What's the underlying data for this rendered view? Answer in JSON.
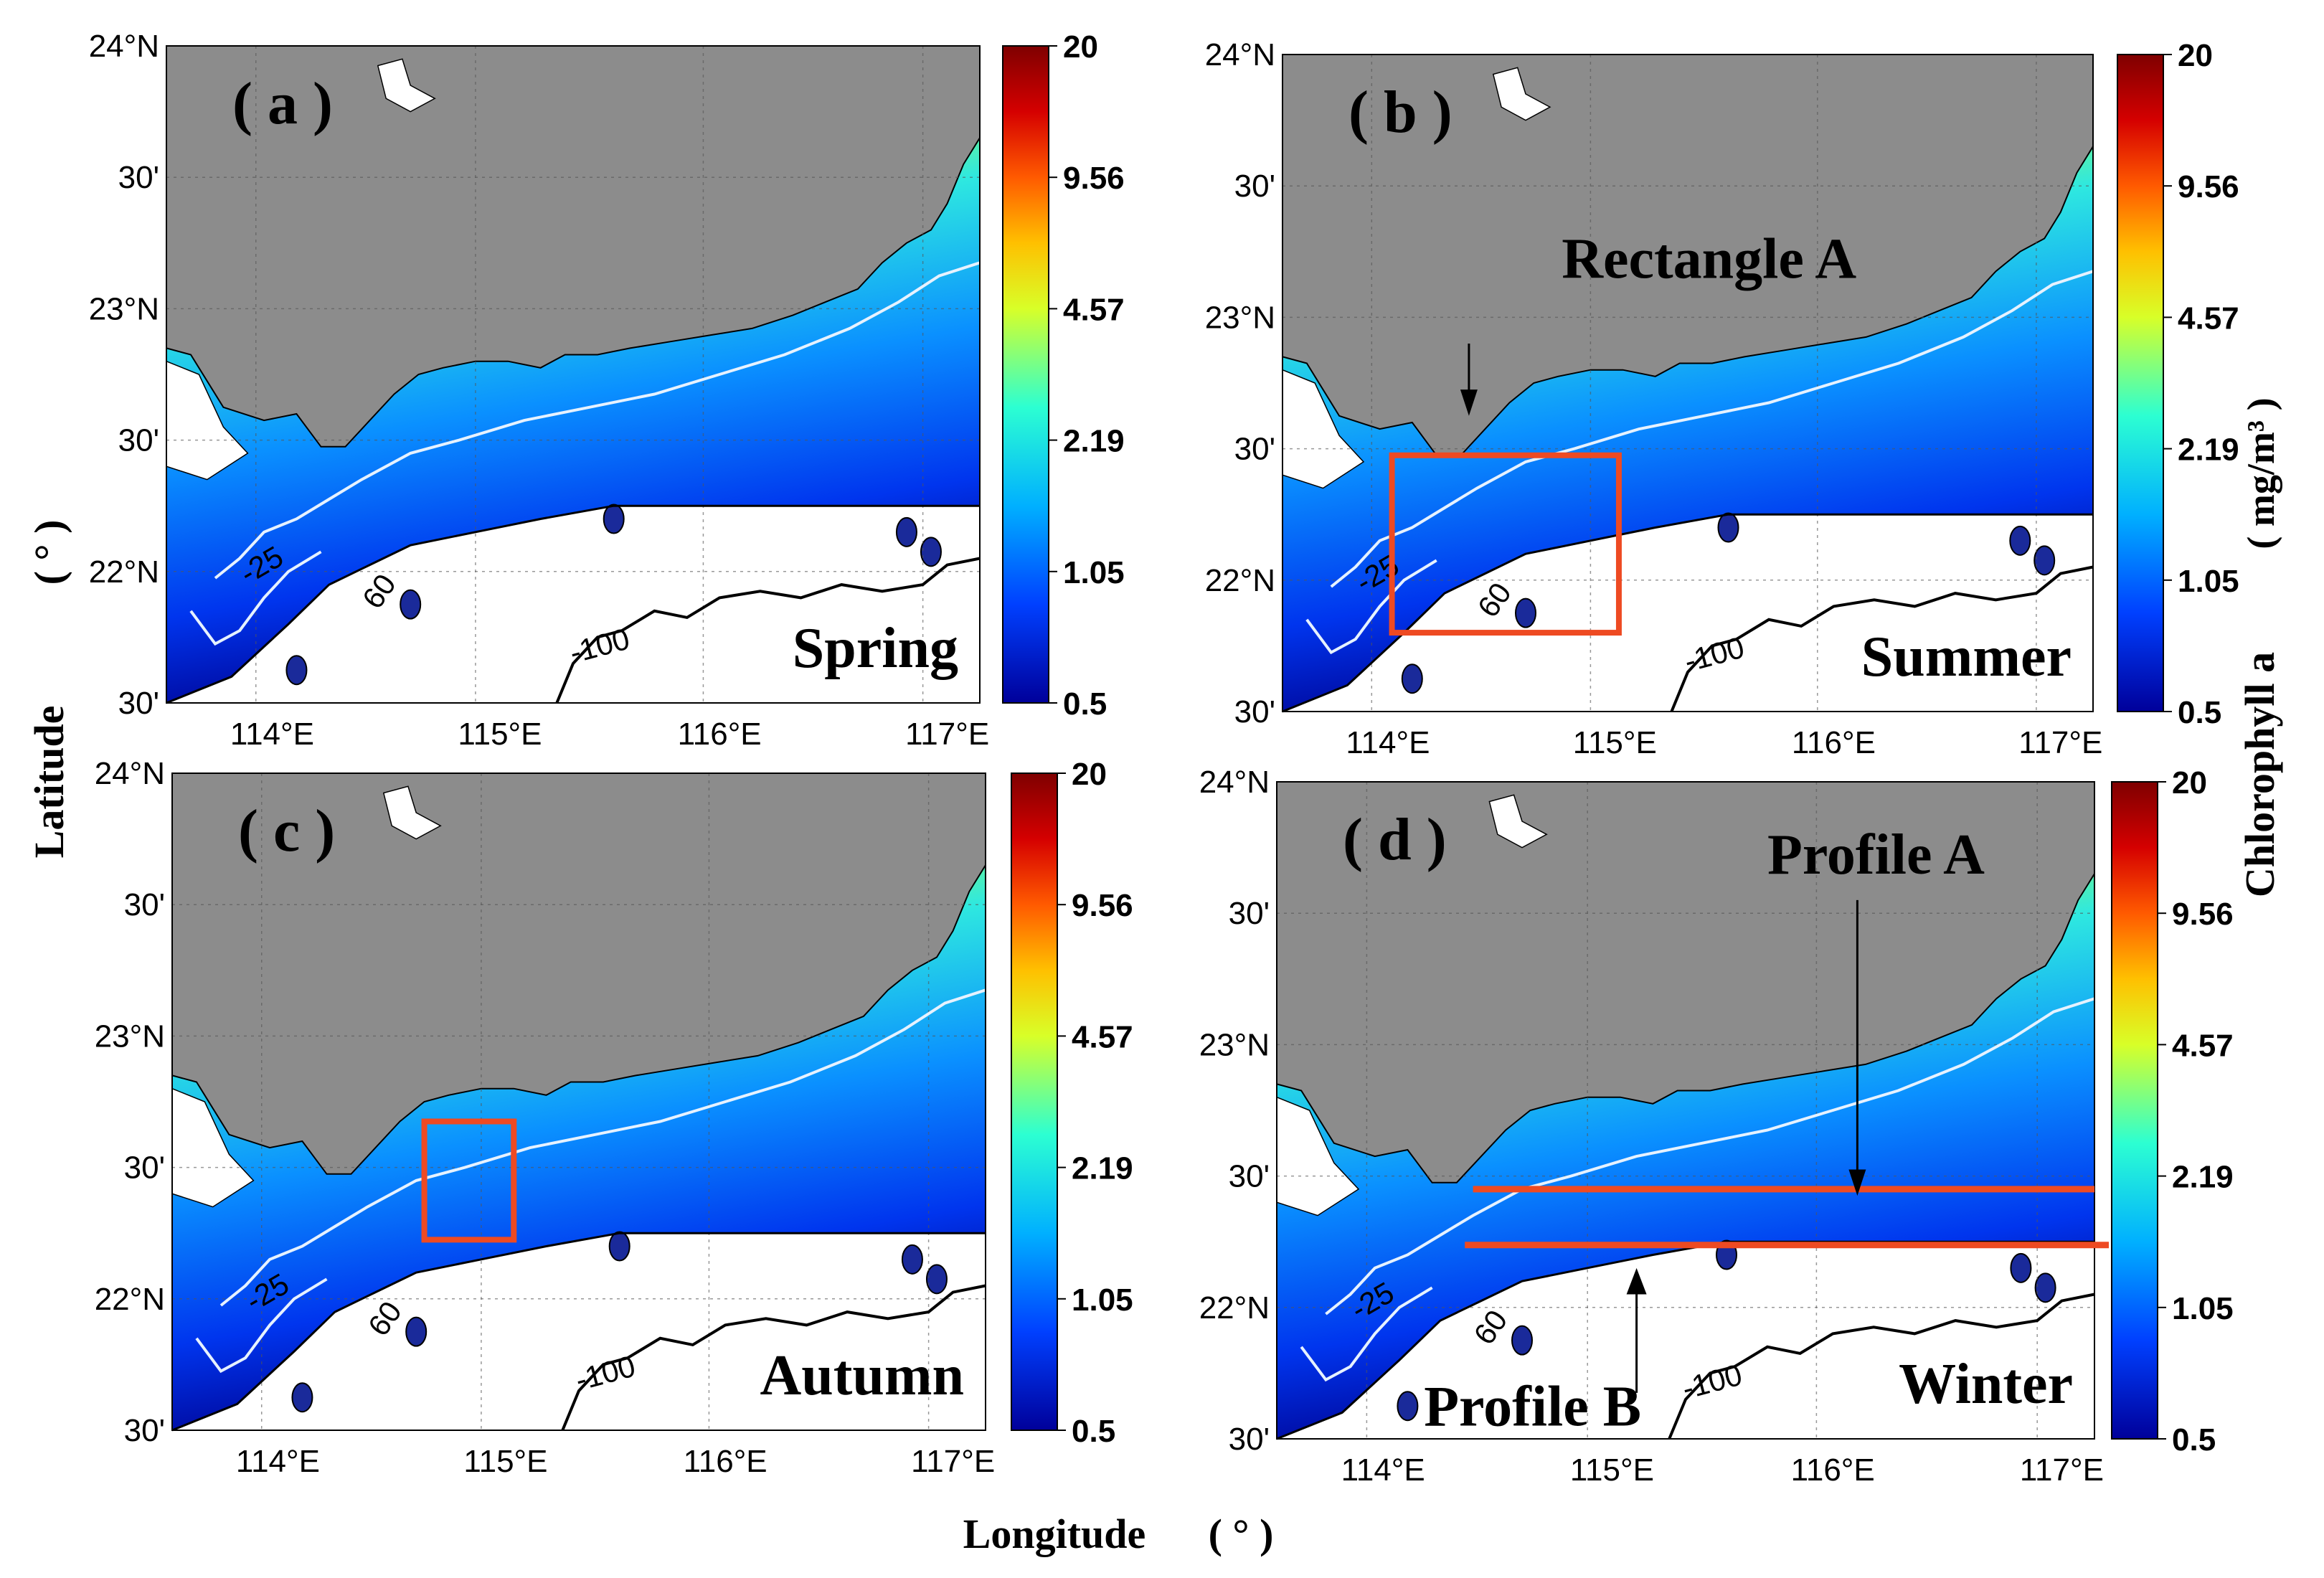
{
  "figure": {
    "xlabel": "Longitude",
    "xlabel_unit": "( ° )",
    "ylabel": "Latitude",
    "ylabel_unit": "( ° )",
    "colorbar_label": "Chlorophyll a",
    "colorbar_unit": "( mg/m³ )",
    "colorbar_ticks": [
      "20",
      "9.56",
      "4.57",
      "2.19",
      "1.05",
      "0.5"
    ],
    "lon_ticks": [
      "114°E",
      "115°E",
      "116°E",
      "117°E"
    ],
    "lat_ticks": [
      "24°N",
      "30'",
      "23°N",
      "30'",
      "22°N",
      "30'"
    ],
    "colors": {
      "land": "#8c8c8c",
      "cmap": [
        "#7f0000",
        "#d50000",
        "#ff5a00",
        "#ffc000",
        "#d8ff28",
        "#2cffd2",
        "#00b0ff",
        "#0040ff",
        "#00009a"
      ],
      "highlight": "#ee4a22",
      "isobath_shallow": "#e6f2ff",
      "isobath_deep": "#000000"
    },
    "isobath_labels": [
      "-25",
      "60",
      "-100"
    ]
  },
  "panels": [
    {
      "id": "a",
      "label": "( a )",
      "season": "Spring"
    },
    {
      "id": "b",
      "label": "( b )",
      "season": "Summer",
      "annotation": "Rectangle A"
    },
    {
      "id": "c",
      "label": "( c )",
      "season": "Autumn"
    },
    {
      "id": "d",
      "label": "( d )",
      "season": "Winter",
      "annotation": "Profile A",
      "annotation2": "Profile B"
    }
  ]
}
